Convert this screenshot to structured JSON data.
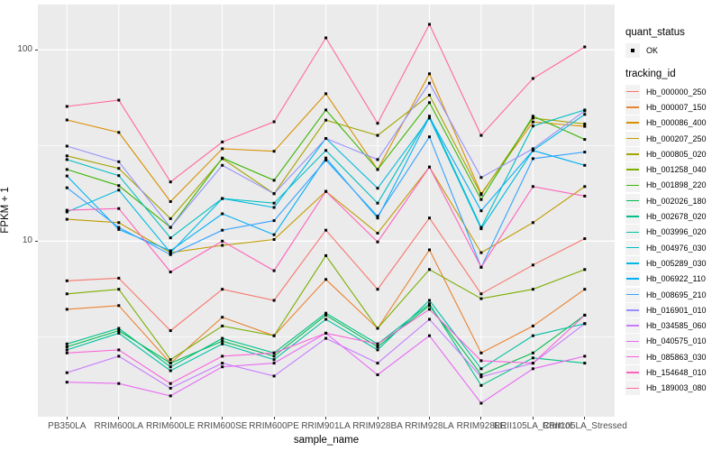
{
  "figure": {
    "background": "#FFFFFF",
    "panel_background": "#EBEBEB",
    "gridline_color": "#FFFFFF",
    "axis_text_color": "#4D4D4D",
    "tick_color": "#333333",
    "point_color": "#000000"
  },
  "legend": {
    "quant_status_title": "quant_status",
    "quant_status_items": [
      {
        "label": "OK",
        "symbol": "point"
      }
    ],
    "tracking_id_title": "tracking_id"
  },
  "axes": {
    "y_tick_labels": [
      "100",
      "10"
    ],
    "x_title": "sample_name",
    "y_title": "FPKM + 1"
  },
  "chart_data": {
    "type": "line",
    "title": "",
    "xlabel": "sample_name",
    "ylabel": "FPKM + 1",
    "x_categories": [
      "PB350LA",
      "RRIM600LA",
      "RRIM600LE",
      "RRIM600SE",
      "RRIM600PE",
      "RRIM901LA",
      "RRIM928BA",
      "RRIM928LA",
      "RRIM928LE",
      "RRII105LA_Control",
      "RRII105LA_Stressed"
    ],
    "y_axis": {
      "scale": "log10",
      "ticks": [
        100,
        10
      ],
      "minor_gridlines": [
        31.62,
        3.162
      ],
      "range_approx": [
        1.2,
        180
      ]
    },
    "point_marker": {
      "shape": "square",
      "color": "#000000",
      "meaning": "quant_status OK"
    },
    "series": [
      {
        "name": "Hb_000000_250",
        "color": "#F8766D",
        "values": [
          6.2,
          6.4,
          3.4,
          5.6,
          4.9,
          11.4,
          5.6,
          13.2,
          5.3,
          7.5,
          10.3
        ]
      },
      {
        "name": "Hb_000007_150",
        "color": "#EA8331",
        "values": [
          4.4,
          4.6,
          2.3,
          4.0,
          3.2,
          6.3,
          3.5,
          9.0,
          2.6,
          3.6,
          5.6
        ]
      },
      {
        "name": "Hb_000086_400",
        "color": "#D89000",
        "values": [
          43,
          37,
          16.1,
          30.4,
          29.5,
          59,
          23.7,
          75,
          17.7,
          42,
          39.8
        ]
      },
      {
        "name": "Hb_000207_250",
        "color": "#C09B00",
        "values": [
          13.0,
          12.5,
          8.7,
          9.5,
          10.2,
          18.2,
          11.0,
          24.4,
          8.7,
          12.5,
          19.3
        ]
      },
      {
        "name": "Hb_000805_020",
        "color": "#A3A500",
        "values": [
          27.9,
          24,
          13.1,
          27,
          17.7,
          42.9,
          35.7,
          58,
          17.5,
          44,
          41
        ]
      },
      {
        "name": "Hb_001258_040",
        "color": "#7CAE00",
        "values": [
          5.3,
          5.6,
          2.4,
          3.6,
          3.2,
          8.4,
          3.5,
          7.1,
          5.0,
          5.6,
          7.1
        ]
      },
      {
        "name": "Hb_001898_220",
        "color": "#39B600",
        "values": [
          23.7,
          19.5,
          11.8,
          27.2,
          20.8,
          48.5,
          23.7,
          53,
          16.5,
          45,
          34
        ]
      },
      {
        "name": "Hb_002026_180",
        "color": "#00BB4E",
        "values": [
          2.8,
          3.4,
          2.3,
          3.0,
          2.5,
          4.1,
          2.8,
          4.6,
          2.0,
          2.6,
          4.1
        ]
      },
      {
        "name": "Hb_002678_020",
        "color": "#00C087",
        "values": [
          2.9,
          3.5,
          2.2,
          3.1,
          2.6,
          4.2,
          2.9,
          4.7,
          1.76,
          2.45,
          2.3
        ]
      },
      {
        "name": "Hb_003996_020",
        "color": "#00C1A3",
        "values": [
          2.7,
          3.3,
          2.1,
          2.9,
          2.4,
          3.9,
          2.7,
          4.9,
          2.15,
          3.2,
          3.7
        ]
      },
      {
        "name": "Hb_004976_030",
        "color": "#00BFC4",
        "values": [
          26.7,
          22,
          10.4,
          16.7,
          15.8,
          29.8,
          15.8,
          45,
          11.8,
          40,
          48.5
        ]
      },
      {
        "name": "Hb_005289_030",
        "color": "#00BAE0",
        "values": [
          14.2,
          18.5,
          8.7,
          16.7,
          15.0,
          34.4,
          18.9,
          44,
          11.6,
          29.8,
          46
        ]
      },
      {
        "name": "Hb_006922_110",
        "color": "#00B0F6",
        "values": [
          21.9,
          11.5,
          8.9,
          13.9,
          10.8,
          27.2,
          13.2,
          44.5,
          14.4,
          29.8,
          24.9
        ]
      },
      {
        "name": "Hb_008695_210",
        "color": "#35A2FF",
        "values": [
          19.0,
          11.8,
          8.5,
          11.4,
          12.8,
          26.5,
          13.5,
          35.1,
          7.3,
          27,
          29.2
        ]
      },
      {
        "name": "Hb_016901_010",
        "color": "#9590FF",
        "values": [
          31.4,
          26,
          11.8,
          24.9,
          17.7,
          34.4,
          26.7,
          67,
          21.5,
          30.4,
          48
        ]
      },
      {
        "name": "Hb_034585_060",
        "color": "#C77CFF",
        "values": [
          2.05,
          2.5,
          1.7,
          2.3,
          1.97,
          3.1,
          2.3,
          3.9,
          1.95,
          2.3,
          3.7
        ]
      },
      {
        "name": "Hb_040575_010",
        "color": "#E76BF3",
        "values": [
          1.83,
          1.8,
          1.55,
          2.2,
          2.3,
          3.3,
          2.0,
          3.2,
          1.42,
          2.15,
          2.5
        ]
      },
      {
        "name": "Hb_085863_030",
        "color": "#FA62DB",
        "values": [
          2.6,
          2.7,
          1.8,
          2.5,
          2.6,
          3.3,
          2.9,
          4.4,
          2.37,
          2.3,
          4.1
        ]
      },
      {
        "name": "Hb_154648_010",
        "color": "#FF62BC",
        "values": [
          14.5,
          14.8,
          6.9,
          10,
          7.0,
          18.2,
          9.9,
          24.4,
          7.3,
          19.3,
          17.2
        ]
      },
      {
        "name": "Hb_189003_080",
        "color": "#FF6A98",
        "values": [
          50.6,
          54.6,
          20.4,
          33,
          42.1,
          115.6,
          41.3,
          136,
          35.7,
          70.9,
          103.7
        ]
      }
    ]
  }
}
